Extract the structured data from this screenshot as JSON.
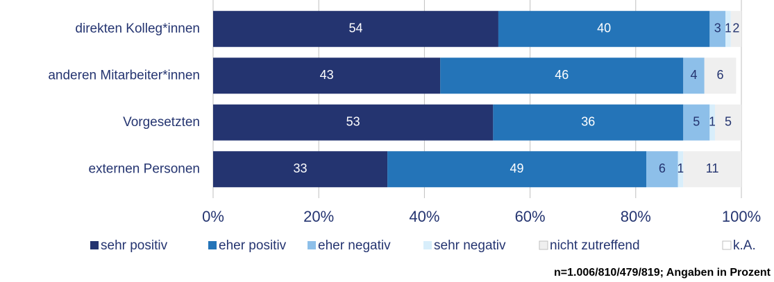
{
  "chart_data": {
    "type": "stacked_bar_horizontal",
    "categories": [
      "direkten Kolleg*innen",
      "anderen Mitarbeiter*innen",
      "Vorgesetzten",
      "externen Personen"
    ],
    "series": [
      {
        "name": "sehr positiv",
        "color": "#243470",
        "values": [
          54,
          43,
          53,
          33
        ]
      },
      {
        "name": "eher positiv",
        "color": "#2474b8",
        "values": [
          40,
          46,
          36,
          49
        ]
      },
      {
        "name": "eher negativ",
        "color": "#8dbfe9",
        "values": [
          3,
          4,
          5,
          6
        ]
      },
      {
        "name": "sehr negativ",
        "color": "#d8eefb",
        "values": [
          1,
          0,
          1,
          1
        ]
      },
      {
        "name": "nicht zutreffend",
        "color": "#efefef",
        "values": [
          2,
          6,
          5,
          11
        ]
      },
      {
        "name": "k.A.",
        "color": "#ffffff",
        "values": [
          0,
          0,
          0,
          0
        ]
      }
    ],
    "xlim": [
      0,
      100
    ],
    "xticks": [
      {
        "value": 0,
        "label": "0%"
      },
      {
        "value": 20,
        "label": "20%"
      },
      {
        "value": 40,
        "label": "40%"
      },
      {
        "value": 60,
        "label": "60%"
      },
      {
        "value": 80,
        "label": "80%"
      },
      {
        "value": 100,
        "label": "100%"
      }
    ],
    "grid": true,
    "legend": "bottom",
    "note": "n=1.006/810/479/819; Angaben in Prozent"
  }
}
